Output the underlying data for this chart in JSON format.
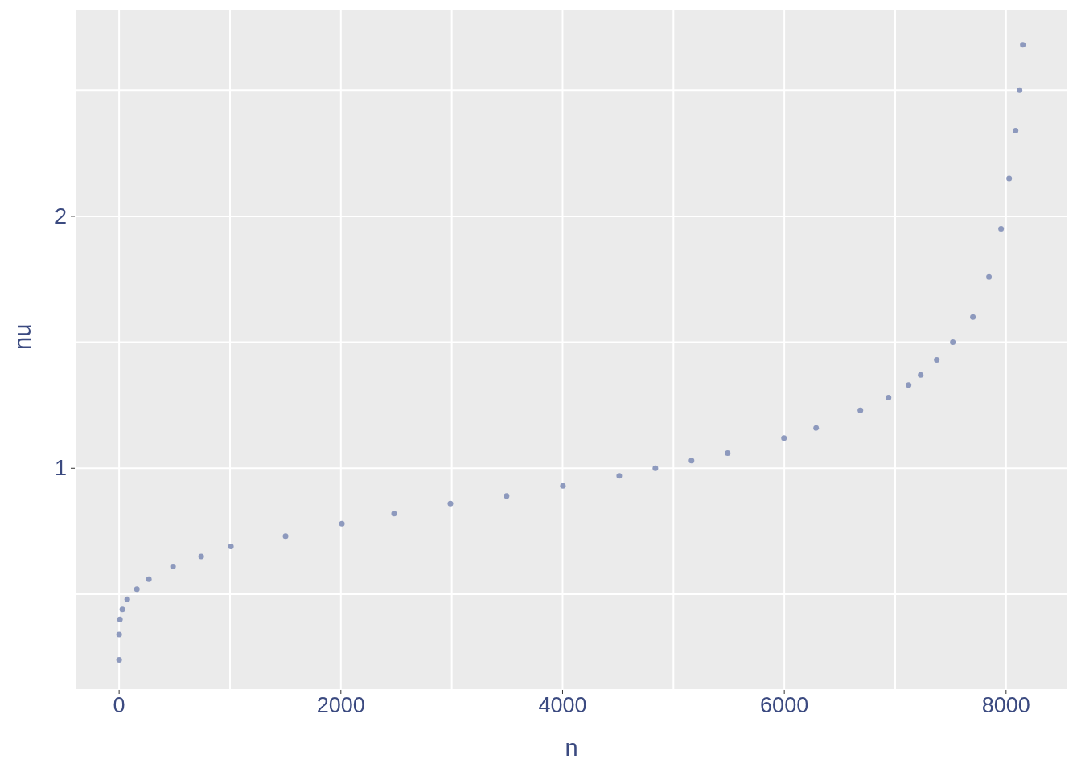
{
  "chart_data": {
    "type": "scatter",
    "xlabel": "n",
    "ylabel": "nu",
    "x": [
      0,
      0,
      7,
      29,
      73,
      160,
      268,
      486,
      740,
      1008,
      1501,
      2009,
      2480,
      2988,
      3495,
      4003,
      4511,
      4837,
      5163,
      5489,
      5997,
      6287,
      6686,
      6940,
      7121,
      7230,
      7375,
      7520,
      7701,
      7846,
      7955,
      8028,
      8086,
      8122,
      8151
    ],
    "series": [
      {
        "color": "#8390b8",
        "values": [
          0.24,
          0.34,
          0.4,
          0.44,
          0.48,
          0.52,
          0.56,
          0.61,
          0.65,
          0.69,
          0.73,
          0.78,
          0.82,
          0.86,
          0.89,
          0.93,
          0.97,
          1.0,
          1.03,
          1.06,
          1.12,
          1.16,
          1.23,
          1.28,
          1.33,
          1.37,
          1.43,
          1.5,
          1.6,
          1.76,
          1.95,
          2.15,
          2.34,
          2.5,
          2.68
        ]
      }
    ],
    "xlim": [
      -400,
      8560
    ],
    "ylim": [
      0.12,
      2.82
    ],
    "xticks": [
      0,
      {
        "value": 1000,
        "label": null
      },
      2000,
      {
        "value": 3000,
        "label": null
      },
      4000,
      {
        "value": 5000,
        "label": null
      },
      6000,
      {
        "value": 7000,
        "label": null
      },
      8000
    ],
    "yticks": [
      {
        "value": 0.5,
        "label": null
      },
      1,
      {
        "value": 1.5,
        "label": null
      },
      2,
      {
        "value": 2.5,
        "label": null
      }
    ],
    "grid": true,
    "marker": "circle"
  }
}
